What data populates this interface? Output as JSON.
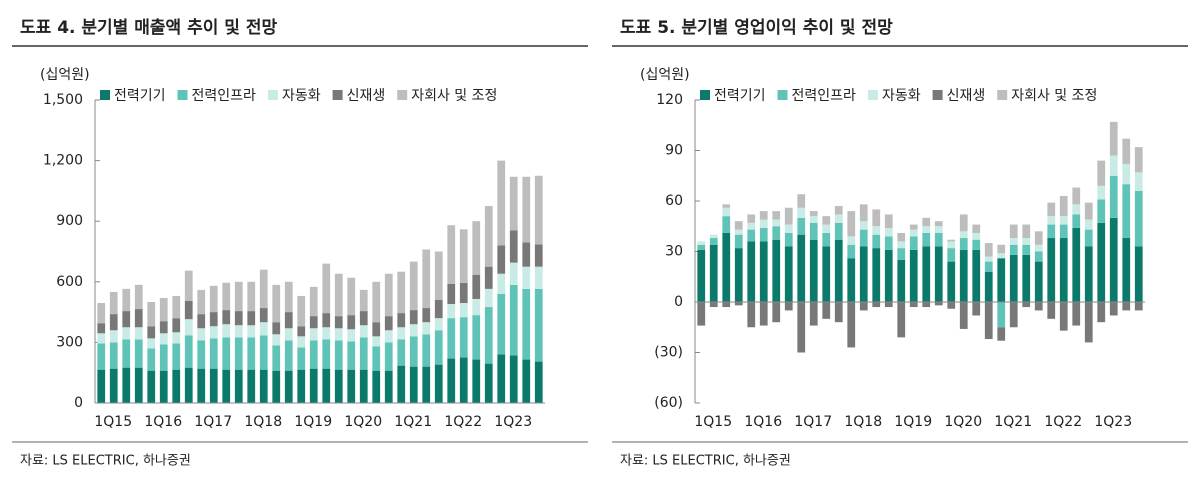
{
  "chart_data": [
    {
      "type": "stacked-bar",
      "title": "도표 4. 분기별 매출액 추이 및 전망",
      "unit_label": "(십억원)",
      "source": "자료: LS ELECTRIC, 하나증권",
      "categories": [
        "1Q15",
        null,
        null,
        null,
        "1Q16",
        null,
        null,
        null,
        "1Q17",
        null,
        null,
        null,
        "1Q18",
        null,
        null,
        null,
        "1Q19",
        null,
        null,
        null,
        "1Q20",
        null,
        null,
        null,
        "1Q21",
        null,
        null,
        null,
        "1Q22",
        null,
        null,
        null,
        "1Q23",
        null,
        null,
        null
      ],
      "ylim": [
        0,
        1500
      ],
      "yticks": [
        0,
        300,
        600,
        900,
        {
          "value": 1200,
          "label": "1,200"
        },
        {
          "value": 1500,
          "label": "1,500"
        }
      ],
      "series": [
        {
          "name": "전력기기",
          "color": "#0b7a6b",
          "values": [
            165,
            170,
            175,
            175,
            160,
            160,
            165,
            175,
            170,
            170,
            165,
            165,
            165,
            165,
            160,
            160,
            165,
            170,
            170,
            165,
            165,
            165,
            160,
            160,
            185,
            180,
            180,
            190,
            220,
            225,
            215,
            195,
            240,
            235,
            215,
            205
          ]
        },
        {
          "name": "전력인프라",
          "color": "#5fc4b7",
          "values": [
            130,
            130,
            140,
            140,
            110,
            130,
            130,
            160,
            140,
            150,
            160,
            160,
            160,
            170,
            125,
            150,
            110,
            140,
            145,
            145,
            140,
            160,
            120,
            140,
            130,
            150,
            160,
            170,
            200,
            200,
            220,
            280,
            300,
            350,
            350,
            360
          ]
        },
        {
          "name": "자동화",
          "color": "#c8ebe6",
          "values": [
            50,
            60,
            60,
            60,
            50,
            55,
            55,
            80,
            60,
            60,
            65,
            60,
            60,
            65,
            55,
            60,
            55,
            60,
            60,
            60,
            60,
            60,
            50,
            60,
            60,
            60,
            60,
            60,
            70,
            70,
            80,
            90,
            100,
            110,
            110,
            110
          ]
        },
        {
          "name": "신재생",
          "color": "#787878",
          "values": [
            50,
            80,
            80,
            90,
            60,
            60,
            70,
            90,
            70,
            70,
            70,
            70,
            70,
            70,
            60,
            80,
            50,
            60,
            70,
            60,
            70,
            70,
            70,
            70,
            70,
            70,
            70,
            90,
            100,
            100,
            120,
            110,
            140,
            160,
            120,
            110
          ]
        },
        {
          "name": "자회사 및 조정",
          "color": "#bdbdbd",
          "values": [
            100,
            110,
            110,
            120,
            120,
            115,
            110,
            150,
            120,
            130,
            135,
            145,
            145,
            190,
            185,
            150,
            150,
            145,
            245,
            210,
            185,
            105,
            200,
            210,
            205,
            240,
            290,
            240,
            290,
            265,
            265,
            300,
            420,
            265,
            325,
            340
          ]
        }
      ]
    },
    {
      "type": "stacked-bar",
      "title": "도표 5. 분기별 영업이익 추이 및 전망",
      "unit_label": "(십억원)",
      "source": "자료: LS ELECTRIC, 하나증권",
      "categories": [
        "1Q15",
        null,
        null,
        null,
        "1Q16",
        null,
        null,
        null,
        "1Q17",
        null,
        null,
        null,
        "1Q18",
        null,
        null,
        null,
        "1Q19",
        null,
        null,
        null,
        "1Q20",
        null,
        null,
        null,
        "1Q21",
        null,
        null,
        null,
        "1Q22",
        null,
        null,
        null,
        "1Q23",
        null,
        null,
        null
      ],
      "ylim": [
        -60,
        120
      ],
      "yticks": [
        {
          "value": -60,
          "label": "(60)"
        },
        {
          "value": -30,
          "label": "(30)"
        },
        0,
        30,
        60,
        90,
        120
      ],
      "series": [
        {
          "name": "전력기기",
          "color": "#0b7a6b",
          "values": [
            31,
            34,
            41,
            32,
            36,
            36,
            37,
            33,
            40,
            37,
            33,
            37,
            26,
            33,
            32,
            31,
            25,
            31,
            33,
            33,
            24,
            31,
            31,
            18,
            26,
            28,
            28,
            24,
            38,
            38,
            44,
            33,
            47,
            50,
            38,
            33
          ]
        },
        {
          "name": "전력인프라",
          "color": "#5fc4b7",
          "values": [
            3,
            4,
            10,
            8,
            7,
            8,
            8,
            8,
            10,
            10,
            8,
            10,
            8,
            10,
            8,
            8,
            7,
            8,
            8,
            8,
            8,
            7,
            6,
            6,
            -15,
            6,
            6,
            6,
            8,
            8,
            8,
            10,
            14,
            25,
            32,
            33
          ]
        },
        {
          "name": "자동화",
          "color": "#c8ebe6",
          "values": [
            2,
            2,
            5,
            3,
            4,
            5,
            4,
            5,
            6,
            4,
            5,
            5,
            5,
            5,
            5,
            5,
            4,
            4,
            4,
            4,
            4,
            4,
            4,
            3,
            3,
            4,
            4,
            4,
            5,
            5,
            6,
            6,
            8,
            12,
            12,
            11
          ]
        },
        {
          "name": "신재생",
          "color": "#787878",
          "values": [
            -14,
            -3,
            -3,
            -2,
            -15,
            -14,
            -12,
            -5,
            -30,
            -14,
            -10,
            -12,
            -27,
            -5,
            -3,
            -3,
            -21,
            -3,
            -3,
            -2,
            -4,
            -16,
            -8,
            -22,
            -8,
            -15,
            -3,
            -5,
            -10,
            -17,
            -14,
            -24,
            -12,
            -8,
            -5,
            -5
          ]
        },
        {
          "name": "자회사 및 조정",
          "color": "#bdbdbd",
          "values": [
            0,
            0,
            2,
            5,
            5,
            5,
            5,
            10,
            8,
            3,
            5,
            5,
            15,
            10,
            10,
            8,
            5,
            3,
            5,
            3,
            1,
            10,
            5,
            8,
            5,
            8,
            8,
            8,
            8,
            12,
            10,
            10,
            15,
            20,
            15,
            15
          ]
        }
      ]
    }
  ]
}
